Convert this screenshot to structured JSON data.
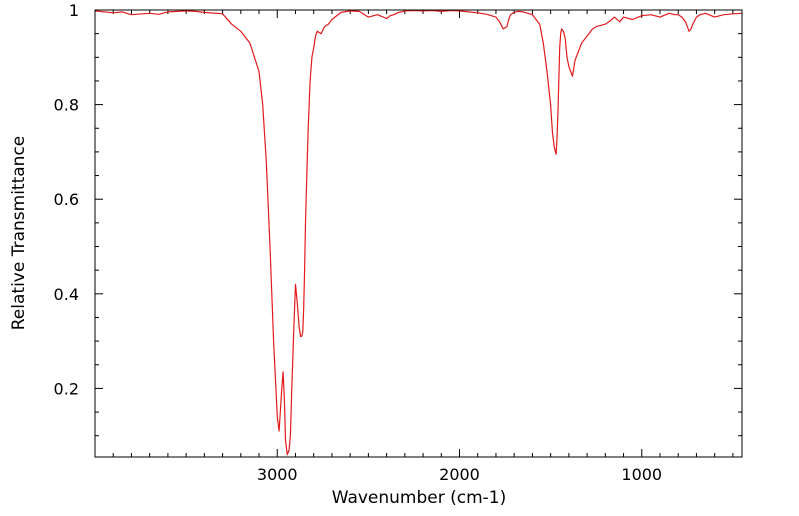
{
  "chart_data": {
    "type": "line",
    "xlabel": "Wavenumber (cm-1)",
    "ylabel": "Relative Transmittance",
    "xlim": [
      4000,
      450
    ],
    "ylim": [
      0.055,
      1.0
    ],
    "x_reversed": true,
    "grid": false,
    "x_ticks_major": [
      3000,
      2000,
      1000
    ],
    "x_tick_labels": [
      "3000",
      "2000",
      "1000"
    ],
    "y_ticks_major": [
      0.2,
      0.4,
      0.6,
      0.8,
      1.0
    ],
    "y_tick_labels": [
      "0.2",
      "0.4",
      "0.6",
      "0.8",
      "1"
    ],
    "series": [
      {
        "color": "#e31a1c",
        "x": [
          4000,
          3900,
          3850,
          3800,
          3700,
          3650,
          3600,
          3500,
          3450,
          3400,
          3300,
          3250,
          3200,
          3150,
          3100,
          3080,
          3060,
          3040,
          3020,
          3000,
          2990,
          2975,
          2968,
          2960,
          2955,
          2945,
          2935,
          2928,
          2920,
          2910,
          2900,
          2890,
          2880,
          2872,
          2866,
          2860,
          2855,
          2850,
          2845,
          2838,
          2830,
          2820,
          2810,
          2800,
          2790,
          2780,
          2760,
          2740,
          2720,
          2700,
          2650,
          2600,
          2550,
          2500,
          2450,
          2400,
          2380,
          2360,
          2340,
          2300,
          2250,
          2200,
          2150,
          2100,
          2050,
          2000,
          1950,
          1900,
          1850,
          1800,
          1780,
          1760,
          1740,
          1730,
          1720,
          1700,
          1680,
          1650,
          1600,
          1560,
          1540,
          1520,
          1500,
          1490,
          1480,
          1470,
          1466,
          1460,
          1455,
          1450,
          1445,
          1440,
          1430,
          1420,
          1410,
          1400,
          1390,
          1380,
          1376,
          1372,
          1368,
          1360,
          1350,
          1330,
          1300,
          1270,
          1250,
          1200,
          1180,
          1150,
          1120,
          1100,
          1050,
          1000,
          950,
          900,
          850,
          820,
          800,
          780,
          770,
          760,
          750,
          740,
          730,
          720,
          700,
          680,
          650,
          600,
          550,
          500,
          450
        ],
        "y": [
          0.998,
          0.994,
          0.996,
          0.99,
          0.993,
          0.991,
          0.996,
          0.998,
          0.997,
          0.995,
          0.992,
          0.97,
          0.955,
          0.93,
          0.87,
          0.8,
          0.68,
          0.5,
          0.3,
          0.14,
          0.11,
          0.2,
          0.235,
          0.17,
          0.09,
          0.06,
          0.07,
          0.1,
          0.2,
          0.32,
          0.42,
          0.38,
          0.33,
          0.31,
          0.31,
          0.32,
          0.37,
          0.45,
          0.55,
          0.65,
          0.75,
          0.85,
          0.9,
          0.92,
          0.945,
          0.955,
          0.95,
          0.965,
          0.97,
          0.98,
          0.995,
          0.998,
          0.997,
          0.985,
          0.99,
          0.982,
          0.988,
          0.99,
          0.994,
          0.998,
          0.999,
          0.998,
          0.999,
          0.997,
          0.999,
          0.998,
          0.996,
          0.994,
          0.991,
          0.985,
          0.975,
          0.96,
          0.965,
          0.98,
          0.99,
          0.995,
          0.997,
          0.996,
          0.99,
          0.97,
          0.93,
          0.87,
          0.8,
          0.74,
          0.71,
          0.695,
          0.72,
          0.78,
          0.85,
          0.92,
          0.95,
          0.96,
          0.955,
          0.94,
          0.9,
          0.88,
          0.87,
          0.86,
          0.87,
          0.88,
          0.89,
          0.9,
          0.91,
          0.93,
          0.945,
          0.96,
          0.965,
          0.97,
          0.975,
          0.985,
          0.975,
          0.985,
          0.98,
          0.988,
          0.99,
          0.985,
          0.993,
          0.99,
          0.99,
          0.985,
          0.98,
          0.975,
          0.965,
          0.955,
          0.96,
          0.97,
          0.985,
          0.99,
          0.993,
          0.985,
          0.99,
          0.992,
          0.993
        ]
      }
    ]
  }
}
